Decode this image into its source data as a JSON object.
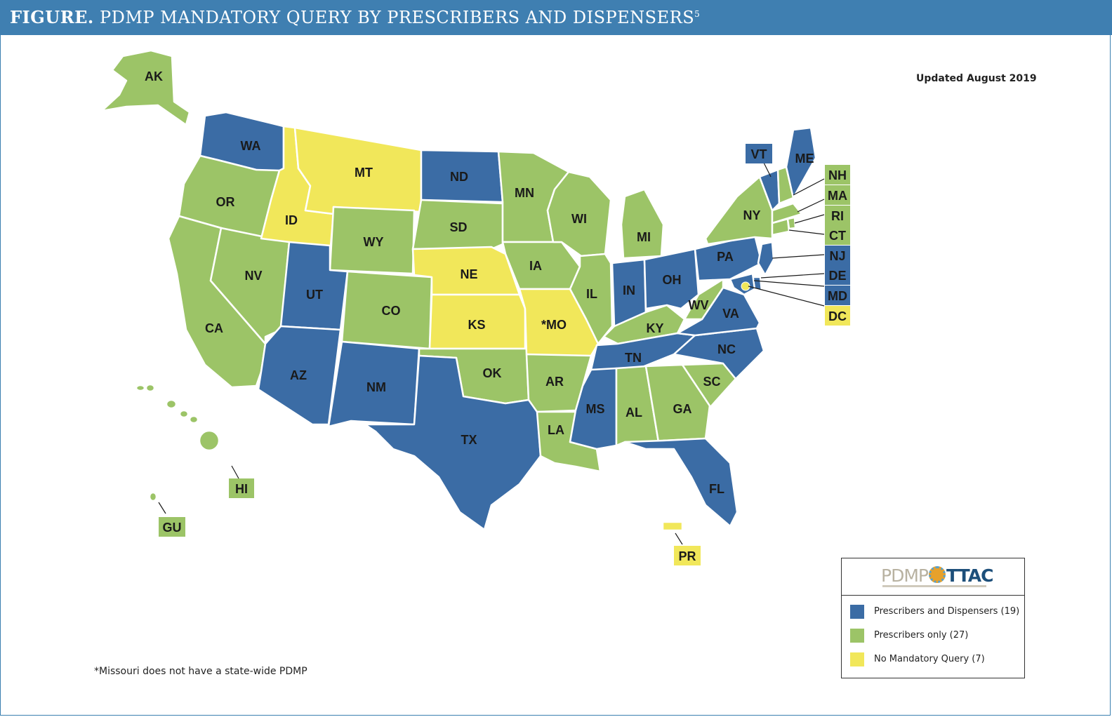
{
  "header": {
    "prefix": "FIGURE.",
    "title": "PDMP MANDATORY QUERY BY PRESCRIBERS AND DISPENSERS",
    "sup": "5"
  },
  "updated": "Updated August 2019",
  "footnote": "*Missouri does not have a state-wide PDMP",
  "colors": {
    "blue": "#3b6ca5",
    "green": "#9cc467",
    "yellow": "#f1e75a"
  },
  "legend": {
    "logo": {
      "left": "PDMP",
      "right": "TTAC"
    },
    "items": [
      {
        "label": "Prescribers and Dispensers (19)",
        "color": "#3b6ca5"
      },
      {
        "label": "Prescribers only (27)",
        "color": "#9cc467"
      },
      {
        "label": "No Mandatory Query (7)",
        "color": "#f1e75a"
      }
    ]
  },
  "states": {
    "WA": "WA",
    "OR": "OR",
    "CA": "CA",
    "NV": "NV",
    "ID": "ID",
    "MT": "MT",
    "WY": "WY",
    "UT": "UT",
    "AZ": "AZ",
    "CO": "CO",
    "NM": "NM",
    "ND": "ND",
    "SD": "SD",
    "NE": "NE",
    "KS": "KS",
    "OK": "OK",
    "TX": "TX",
    "MN": "MN",
    "IA": "IA",
    "MO": "*MO",
    "AR": "AR",
    "LA": "LA",
    "WI": "WI",
    "IL": "IL",
    "MI": "MI",
    "IN": "IN",
    "OH": "OH",
    "KY": "KY",
    "TN": "TN",
    "MS": "MS",
    "AL": "AL",
    "GA": "GA",
    "FL": "FL",
    "SC": "SC",
    "NC": "NC",
    "VA": "VA",
    "WV": "WV",
    "PA": "PA",
    "NY": "NY",
    "ME": "ME",
    "AK": "AK",
    "HI": "HI",
    "GU": "GU",
    "PR": "PR"
  },
  "callouts": {
    "VT": "VT",
    "NH": "NH",
    "MA": "MA",
    "RI": "RI",
    "CT": "CT",
    "NJ": "NJ",
    "DE": "DE",
    "MD": "MD",
    "DC": "DC"
  }
}
